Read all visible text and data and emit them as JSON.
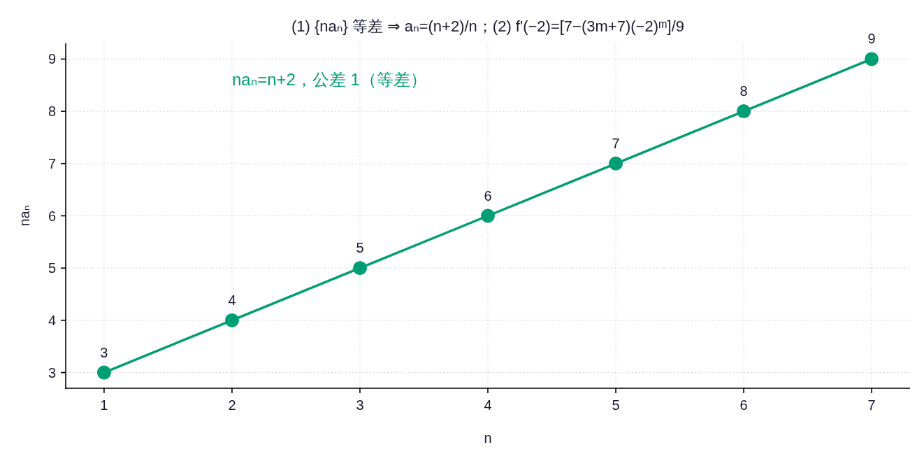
{
  "chart_data": {
    "type": "line",
    "title": "(1) {naₙ} 等差 ⇒ aₙ=(n+2)/n；(2) f'(−2)=[7−(3m+7)(−2)ᵐ]/9",
    "xlabel": "n",
    "ylabel": "naₙ",
    "annotations": [
      "naₙ=n+2，公差 1（等差）"
    ],
    "x": [
      1,
      2,
      3,
      4,
      5,
      6,
      7
    ],
    "series": [
      {
        "color": "#009e73",
        "values": [
          3,
          4,
          5,
          6,
          7,
          8,
          9
        ]
      }
    ],
    "xlim": [
      0.7,
      7.3
    ],
    "ylim": [
      2.7,
      9.3
    ],
    "xticks": [
      1,
      2,
      3,
      4,
      5,
      6,
      7
    ],
    "yticks": [
      3,
      4,
      5,
      6,
      7,
      8,
      9
    ],
    "grid": true,
    "marker": "circle",
    "line_style": "solid",
    "data_labels": true
  }
}
